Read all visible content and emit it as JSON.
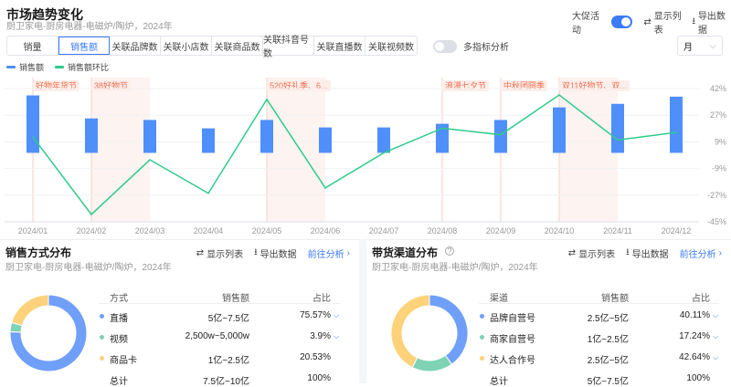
{
  "header": {
    "title": "市场趋势变化",
    "subtitle": "厨卫家电-厨房电器-电磁炉/陶炉，2024年",
    "promo_label": "大促活动",
    "promo_on": true,
    "show_list": "显示列表",
    "export": "导出数据"
  },
  "tabs": [
    {
      "label": "销量"
    },
    {
      "label": "销售额",
      "active": true
    },
    {
      "label": "关联品牌数"
    },
    {
      "label": "关联小店数"
    },
    {
      "label": "关联商品数"
    },
    {
      "label": "关联抖音号数"
    },
    {
      "label": "关联直播数"
    },
    {
      "label": "关联视频数"
    }
  ],
  "multi_label": "多指标分析",
  "multi_on": false,
  "period_select": "月",
  "colors": {
    "bar": "#4f8ff9",
    "line": "#2ecb8a",
    "event": "#f07050",
    "blue": "#6f9ff8",
    "green": "#7dd3b4",
    "yellow": "#fdd27a",
    "accent": "#3a7bf6"
  },
  "chart_data": {
    "type": "bar+line",
    "categories": [
      "2024/01",
      "2024/02",
      "2024/03",
      "2024/04",
      "2024/05",
      "2024/06",
      "2024/07",
      "2024/08",
      "2024/09",
      "2024/10",
      "2024/11",
      "2024/12"
    ],
    "series": [
      {
        "name": "销售额",
        "type": "bar",
        "values": [
          37.5,
          22.5,
          21.5,
          16,
          21.5,
          16.6,
          16.6,
          19,
          21.5,
          29.7,
          32,
          36.7
        ]
      },
      {
        "name": "销售额环比",
        "type": "line",
        "values": [
          10.4,
          -40.2,
          -4.5,
          -26.4,
          34.9,
          -22.9,
          0,
          16.1,
          11.8,
          37.8,
          8.4,
          13.3
        ]
      }
    ],
    "y_ticks": [
      "42%",
      "27%",
      "9%",
      "-9%",
      "-27%",
      "-45%"
    ],
    "ylim": [
      -45,
      42
    ],
    "legend_position": "top-left",
    "events": [
      {
        "label": "好物年货节",
        "start": 0,
        "end": 0
      },
      {
        "label": "38好物节",
        "start": 1,
        "end": 2
      },
      {
        "label": "520好礼季、6...",
        "start": 4,
        "end": 5
      },
      {
        "label": "浪漫七夕节",
        "start": 7,
        "end": 7
      },
      {
        "label": "中秋团圆季",
        "start": 8,
        "end": 8
      },
      {
        "label": "双11好物节、双...",
        "start": 9,
        "end": 10
      }
    ]
  },
  "sales_method": {
    "title": "销售方式分布",
    "subtitle": "厨卫家电-厨房电器-电磁炉/陶炉，2024年",
    "show_list": "显示列表",
    "export": "导出数据",
    "goto": "前往分析",
    "headers": [
      "方式",
      "销售额",
      "占比"
    ],
    "rows": [
      {
        "name": "直播",
        "amount": "5亿~7.5亿",
        "pct": "75.57%",
        "value": 75.57,
        "color": "#6f9ff8",
        "expand": true
      },
      {
        "name": "视频",
        "amount": "2,500w~5,000w",
        "pct": "3.9%",
        "value": 3.9,
        "color": "#7dd3b4",
        "expand": true
      },
      {
        "name": "商品卡",
        "amount": "1亿~2.5亿",
        "pct": "20.53%",
        "value": 20.53,
        "color": "#fdd27a",
        "expand": false
      }
    ],
    "total": {
      "name": "总计",
      "amount": "7.5亿~10亿",
      "pct": "100%"
    }
  },
  "channel": {
    "title": "带货渠道分布",
    "subtitle": "厨卫家电-厨房电器-电磁炉/陶炉，2024年",
    "show_list": "显示列表",
    "export": "导出数据",
    "goto": "前往分析",
    "headers": [
      "渠道",
      "销售额",
      "占比"
    ],
    "rows": [
      {
        "name": "品牌自营号",
        "amount": "2.5亿~5亿",
        "pct": "40.11%",
        "value": 40.11,
        "color": "#6f9ff8",
        "expand": true
      },
      {
        "name": "商家自营号",
        "amount": "1亿~2.5亿",
        "pct": "17.24%",
        "value": 17.24,
        "color": "#7dd3b4",
        "expand": true
      },
      {
        "name": "达人合作号",
        "amount": "2.5亿~5亿",
        "pct": "42.64%",
        "value": 42.64,
        "color": "#fdd27a",
        "expand": true
      }
    ],
    "total": {
      "name": "总计",
      "amount": "5亿~7.5亿",
      "pct": "100%"
    }
  }
}
